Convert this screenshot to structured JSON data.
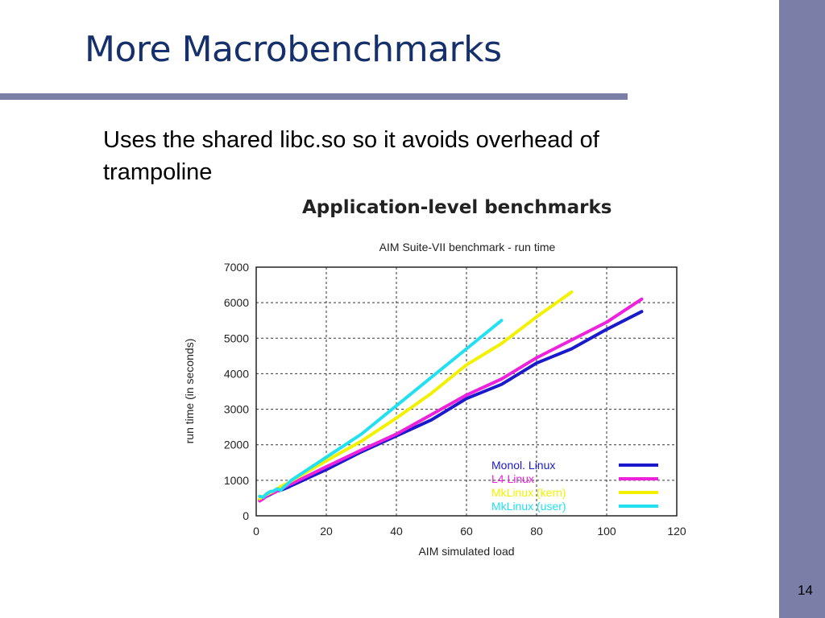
{
  "slide": {
    "title": "More Macrobenchmarks",
    "body": "Uses the shared libc.so so it avoids overhead of trampoline",
    "page_number": "14",
    "figure_heading": "Application-level benchmarks"
  },
  "colors": {
    "sidebar": "#7b7fa8",
    "title": "#16306b"
  },
  "chart_data": {
    "type": "line",
    "title": "AIM Suite-VII benchmark - run time",
    "xlabel": "AIM simulated load",
    "ylabel": "run time (in seconds)",
    "xlim": [
      0,
      120
    ],
    "ylim": [
      0,
      7000
    ],
    "xticks": [
      0,
      20,
      40,
      60,
      80,
      100,
      120
    ],
    "yticks": [
      0,
      1000,
      2000,
      3000,
      4000,
      5000,
      6000,
      7000
    ],
    "grid": true,
    "legend_position": "bottom-right",
    "series": [
      {
        "name": "Monol. Linux",
        "color": "#1a1acc",
        "x": [
          1,
          2,
          3,
          4,
          5,
          6,
          7,
          8,
          9,
          10,
          20,
          30,
          40,
          50,
          60,
          70,
          80,
          90,
          100,
          110
        ],
        "y": [
          450,
          500,
          550,
          600,
          650,
          700,
          720,
          760,
          800,
          850,
          1300,
          1800,
          2250,
          2700,
          3300,
          3700,
          4300,
          4700,
          5250,
          5750
        ]
      },
      {
        "name": "L4 Linux",
        "color": "#ee22dd",
        "x": [
          1,
          2,
          3,
          4,
          5,
          6,
          7,
          8,
          9,
          10,
          20,
          30,
          40,
          50,
          60,
          70,
          80,
          90,
          100,
          110
        ],
        "y": [
          420,
          480,
          560,
          620,
          650,
          700,
          760,
          800,
          860,
          900,
          1380,
          1850,
          2300,
          2850,
          3400,
          3850,
          4450,
          4950,
          5450,
          6100
        ]
      },
      {
        "name": "MkLinux (kern)",
        "color": "#f2f200",
        "x": [
          1,
          2,
          3,
          4,
          5,
          6,
          7,
          8,
          9,
          10,
          20,
          30,
          40,
          50,
          60,
          70,
          80,
          90
        ],
        "y": [
          480,
          550,
          600,
          650,
          700,
          760,
          820,
          870,
          920,
          980,
          1550,
          2100,
          2750,
          3450,
          4250,
          4850,
          5600,
          6300
        ]
      },
      {
        "name": "MkLinux (user)",
        "color": "#22e0f0",
        "x": [
          1,
          2,
          3,
          4,
          5,
          6,
          7,
          8,
          9,
          10,
          20,
          30,
          40,
          50,
          60,
          70
        ],
        "y": [
          550,
          520,
          620,
          680,
          700,
          760,
          720,
          820,
          900,
          1000,
          1650,
          2300,
          3100,
          3900,
          4700,
          5500
        ]
      }
    ]
  }
}
